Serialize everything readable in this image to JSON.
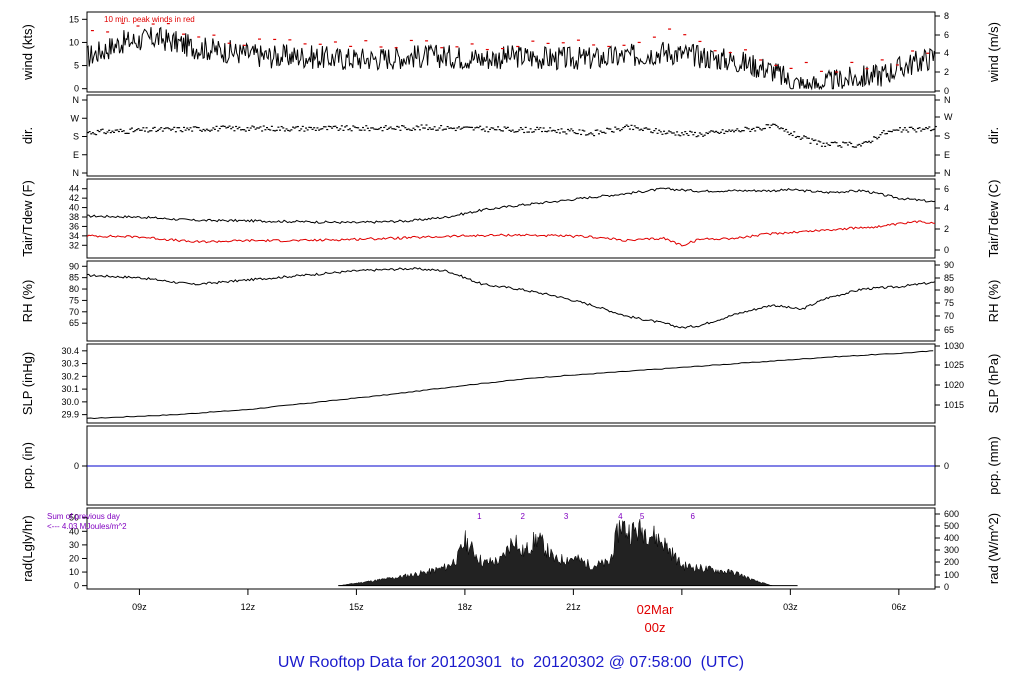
{
  "chart_data": {
    "type": "line",
    "title": "UW Rooftop Data for 20120301  to  20120302 @ 07:58:00  (UTC)",
    "time_ticks": [
      "09z",
      "12z",
      "15z",
      "18z",
      "21z",
      "00z",
      "03z",
      "06z"
    ],
    "time_tick_hours": [
      9,
      12,
      15,
      18,
      21,
      24,
      27,
      30
    ],
    "time_range_hours": [
      7.55,
      31.0
    ],
    "date_marker": {
      "label": "02Mar",
      "hour_label": "00z",
      "hour": 24
    },
    "panels": [
      {
        "id": "wind",
        "left_label": "wind (kts)",
        "right_label": "wind (m/s)",
        "left_ticks": [
          0,
          5,
          10,
          15
        ],
        "left_range": [
          -0.5,
          15.5
        ],
        "right_ticks": [
          0,
          2,
          4,
          6,
          8
        ],
        "note": "10 min. peak winds in red",
        "series": [
          {
            "name": "wind",
            "color": "#000000",
            "x": [
              7.6,
              8.5,
              9.5,
              10.5,
              11.5,
              12.5,
              13.5,
              14.5,
              15.5,
              16.5,
              17.5,
              18.5,
              19.5,
              20.5,
              21.5,
              22.5,
              23.5,
              24.5,
              25.5,
              26.5,
              27,
              27.5,
              28.5,
              29.5,
              30.2,
              31
            ],
            "y": [
              7,
              10,
              11,
              9,
              8,
              7,
              7,
              6.5,
              6.5,
              7,
              7,
              6.5,
              7,
              6.5,
              6.5,
              7,
              8,
              7,
              6,
              4,
              1.5,
              0.5,
              2,
              3,
              5,
              7
            ]
          },
          {
            "name": "10 min. peak winds",
            "color": "#e00000",
            "x": [
              8,
              9,
              10,
              11,
              12,
              13,
              14,
              15,
              16,
              17,
              18,
              19,
              20,
              21,
              22,
              23,
              23.8,
              24.5,
              25,
              26,
              27,
              27.5,
              28,
              29,
              30,
              30.5,
              31
            ],
            "y": [
              13,
              14,
              13,
              11,
              10,
              10,
              9.5,
              10,
              9.5,
              10,
              9.5,
              9,
              9.5,
              10,
              9.5,
              11,
              13.5,
              10,
              9,
              7,
              4,
              5,
              4,
              5,
              6,
              9,
              8
            ]
          }
        ]
      },
      {
        "id": "dir",
        "left_label": "dir.",
        "right_label": "dir.",
        "left_ticks": [
          "N",
          "E",
          "S",
          "W",
          "N"
        ],
        "left_range": [
          -10,
          370
        ],
        "series": [
          {
            "name": "dir",
            "color": "#000000",
            "x": [
              7.6,
              9,
              11,
              13,
              15,
              17,
              19,
              20.5,
              21.5,
              22.5,
              23.5,
              24.5,
              25.5,
              26.5,
              27,
              27.5,
              28,
              29,
              29.5,
              30,
              31
            ],
            "y": [
              205,
              215,
              225,
              225,
              225,
              230,
              220,
              215,
              200,
              230,
              205,
              195,
              215,
              235,
              200,
              160,
              140,
              140,
              200,
              215,
              225
            ]
          }
        ]
      },
      {
        "id": "temp",
        "left_label": "Tair/Tdew (F)",
        "right_label": "Tair/Tdew (C)",
        "left_ticks": [
          32,
          34,
          36,
          38,
          40,
          42,
          44
        ],
        "left_range": [
          31,
          45
        ],
        "right_ticks": [
          0,
          2,
          4,
          6
        ],
        "series": [
          {
            "name": "Tair",
            "color": "#000000",
            "x": [
              7.6,
              9,
              10.5,
              12,
              13.5,
              15,
              16.5,
              17.5,
              18.5,
              19.5,
              20.5,
              21.5,
              22.5,
              23.5,
              24.5,
              25.5,
              26.5,
              27,
              28,
              29,
              30,
              31
            ],
            "y": [
              38.2,
              38,
              37.3,
              37.2,
              37,
              36.8,
              37.2,
              38,
              39.5,
              40.5,
              41.3,
              42.2,
              43,
              44,
              43.5,
              43.6,
              43.6,
              43.8,
              43.2,
              43.6,
              42,
              41.2
            ]
          },
          {
            "name": "Tdew",
            "color": "#e00000",
            "x": [
              7.6,
              9,
              10.5,
              12,
              13.5,
              15,
              16.5,
              18,
              19.5,
              20.5,
              21.5,
              22.5,
              23.5,
              24,
              24.5,
              25.5,
              26.5,
              27.5,
              28.5,
              29.5,
              30.5,
              31
            ],
            "y": [
              34,
              33.8,
              32.7,
              33,
              33,
              33.3,
              33.6,
              34,
              34.2,
              34,
              33.8,
              33,
              33.5,
              32,
              33.3,
              33.5,
              34.5,
              35,
              35.5,
              36,
              37,
              36.8
            ]
          }
        ]
      },
      {
        "id": "rh",
        "left_label": "RH (%)",
        "right_label": "RH (%)",
        "left_ticks": [
          65,
          70,
          75,
          80,
          85,
          90
        ],
        "left_range": [
          62,
          91
        ],
        "right_ticks": [
          65,
          70,
          75,
          80,
          85,
          90
        ],
        "series": [
          {
            "name": "RH",
            "color": "#000000",
            "x": [
              7.6,
              9,
              10.5,
              12,
              13.5,
              15,
              16.5,
              17.5,
              18.5,
              19.5,
              20.5,
              21.5,
              22.5,
              23.5,
              24,
              24.5,
              25.5,
              26.5,
              27.3,
              28,
              29,
              30,
              31
            ],
            "y": [
              86,
              85,
              82,
              84,
              86,
              88,
              89,
              88,
              82,
              80,
              77,
              73,
              68,
              65,
              63,
              64,
              69,
              73,
              71,
              76,
              80,
              81,
              83
            ]
          }
        ]
      },
      {
        "id": "slp",
        "left_label": "SLP (inHg)",
        "right_label": "SLP (hPa)",
        "left_ticks": [
          29.9,
          30.0,
          30.1,
          30.2,
          30.3,
          30.4
        ],
        "left_range": [
          29.85,
          30.43
        ],
        "right_ticks": [
          1015,
          1020,
          1025,
          1030
        ],
        "series": [
          {
            "name": "SLP",
            "color": "#000000",
            "x": [
              7.6,
              10,
              12,
              14,
              16,
              18,
              20,
              22,
              24,
              26,
              28,
              30,
              31
            ],
            "y": [
              29.87,
              29.9,
              29.94,
              30.0,
              30.06,
              30.13,
              30.19,
              30.23,
              30.27,
              30.31,
              30.35,
              30.38,
              30.4
            ]
          }
        ]
      },
      {
        "id": "pcp",
        "left_label": "pcp. (in)",
        "right_label": "pcp. (mm)",
        "left_ticks": [
          0
        ],
        "right_ticks": [
          0
        ],
        "series": [
          {
            "name": "pcp",
            "color": "#0000cc",
            "x": [
              7.6,
              31
            ],
            "y": [
              0,
              0
            ]
          }
        ]
      },
      {
        "id": "rad",
        "left_label": "rad(Lgly/hr)",
        "right_label": "rad (W/m^2)",
        "left_ticks": [
          0,
          10,
          20,
          30,
          40,
          50
        ],
        "left_range": [
          -1,
          52
        ],
        "right_ticks": [
          0,
          100,
          200,
          300,
          400,
          500,
          600
        ],
        "note_lines": [
          "Sum of previous day",
          "<--- 4.03 MJoules/m^2"
        ],
        "marker_labels": [
          "1",
          "2",
          "3",
          "4",
          "5",
          "6"
        ],
        "marker_hours": [
          18.4,
          19.6,
          20.8,
          22.3,
          22.9,
          24.3
        ],
        "series": [
          {
            "name": "rad",
            "color": "#000000",
            "x": [
              14.5,
              15,
              16,
              17,
              17.5,
              17.8,
              18,
              18.5,
              19,
              19.4,
              19.5,
              19.7,
              20,
              20.5,
              21,
              21.5,
              22,
              22.3,
              22.5,
              23,
              23.5,
              24,
              24.5,
              25,
              25.5,
              26,
              26.5
            ],
            "y": [
              0,
              2,
              6,
              11,
              15,
              22,
              36,
              18,
              20,
              40,
              26,
              28,
              38,
              20,
              22,
              16,
              18,
              50,
              43,
              44,
              34,
              16,
              14,
              12,
              10,
              4,
              0
            ]
          }
        ]
      }
    ]
  }
}
